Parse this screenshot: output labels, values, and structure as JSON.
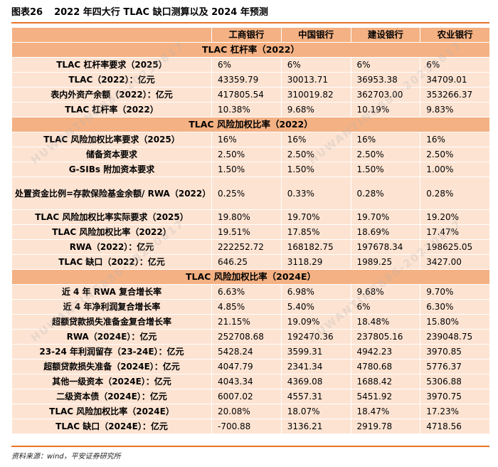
{
  "figure": {
    "number": "图表26",
    "title": "2022 年四大行 TLAC 缺口测算以及 2024 年预测"
  },
  "banks": [
    "工商银行",
    "中国银行",
    "建设银行",
    "农业银行"
  ],
  "sections": [
    {
      "title": "TLAC 杠杆率（2022）",
      "rows": [
        {
          "label": "TLAC 杠杆率要求（2025）",
          "values": [
            "6%",
            "6%",
            "6%",
            "6%"
          ]
        },
        {
          "label": "TLAC（2022）：亿元",
          "values": [
            "43359.79",
            "30013.71",
            "36953.38",
            "34709.01"
          ]
        },
        {
          "label": "表内外资产余额（2022）：亿元",
          "values": [
            "417805.54",
            "310019.82",
            "362703.00",
            "353266.37"
          ]
        },
        {
          "label": "TLAC 杠杆率（2022）",
          "values": [
            "10.38%",
            "9.68%",
            "10.19%",
            "9.83%"
          ]
        }
      ]
    },
    {
      "title": "TLAC 风险加权比率（2022）",
      "rows": [
        {
          "label": "TLAC 风险加权比率要求（2025）",
          "values": [
            "16%",
            "16%",
            "16%",
            "16%"
          ]
        },
        {
          "label": "储备资本要求",
          "values": [
            "2.50%",
            "2.50%",
            "2.50%",
            "2.50%"
          ]
        },
        {
          "label": "G-SIBs 附加资本要求",
          "values": [
            "1.50%",
            "1.50%",
            "1.50%",
            "1.00%"
          ]
        },
        {
          "label": "处置资金比例=存款保险基金余额/ RWA（2022）",
          "values": [
            "0.25%",
            "0.33%",
            "0.28%",
            "0.28%"
          ],
          "tall": true
        },
        {
          "label": "TLAC 风险加权比率实际要求（2025）",
          "values": [
            "19.80%",
            "19.70%",
            "19.70%",
            "19.20%"
          ]
        },
        {
          "label": "TLAC 风险加权比率（2022）",
          "values": [
            "19.51%",
            "17.85%",
            "18.69%",
            "17.47%"
          ]
        },
        {
          "label": "RWA（2022）：亿元",
          "values": [
            "222252.72",
            "168182.75",
            "197678.34",
            "198625.05"
          ]
        },
        {
          "label": "TLAC 缺口（2022）：亿元",
          "values": [
            "646.25",
            "3118.29",
            "1989.25",
            "3427.00"
          ]
        }
      ]
    },
    {
      "title": "TLAC 风险加权比率（2024E）",
      "rows": [
        {
          "label": "近 4 年 RWA 复合增长率",
          "values": [
            "6.63%",
            "6.98%",
            "9.68%",
            "9.70%"
          ]
        },
        {
          "label": "近 4 年净利润复合增长率",
          "values": [
            "4.85%",
            "5.40%",
            "6%",
            "6.30%"
          ]
        },
        {
          "label": "超额贷款损失准备金复合增长率",
          "values": [
            "21.15%",
            "19.09%",
            "18.48%",
            "15.80%"
          ]
        },
        {
          "label": "RWA（2024E）：亿元",
          "values": [
            "252708.68",
            "192470.36",
            "237805.16",
            "239048.75"
          ]
        },
        {
          "label": "23-24 年利润留存（23-24E）：亿元",
          "values": [
            "5428.24",
            "3599.31",
            "4942.23",
            "3970.85"
          ]
        },
        {
          "label": "超额贷款损失准备（2024E）：亿元",
          "values": [
            "4047.79",
            "2341.34",
            "4780.68",
            "5776.37"
          ]
        },
        {
          "label": "其他一级资本（2024E）：亿元",
          "values": [
            "4043.34",
            "4369.08",
            "1688.42",
            "5306.88"
          ]
        },
        {
          "label": "二级资本债（2024E）：亿元",
          "values": [
            "6007.02",
            "4557.31",
            "5451.92",
            "3970.75"
          ]
        },
        {
          "label": "TLAC 风险加权比率（2024E）",
          "values": [
            "20.08%",
            "18.07%",
            "18.47%",
            "17.23%"
          ]
        },
        {
          "label": "TLAC 缺口（2024E）：亿元",
          "values": [
            "-700.88",
            "3136.21",
            "2919.78",
            "4718.56"
          ]
        }
      ]
    }
  ],
  "source": "资料来源：wind，平安证券研究所",
  "watermark": "HUWANTING886-20230817",
  "colors": {
    "accent": "#e8742a",
    "header_bg": "#f4b183",
    "row_bg": "#fde3d2"
  }
}
